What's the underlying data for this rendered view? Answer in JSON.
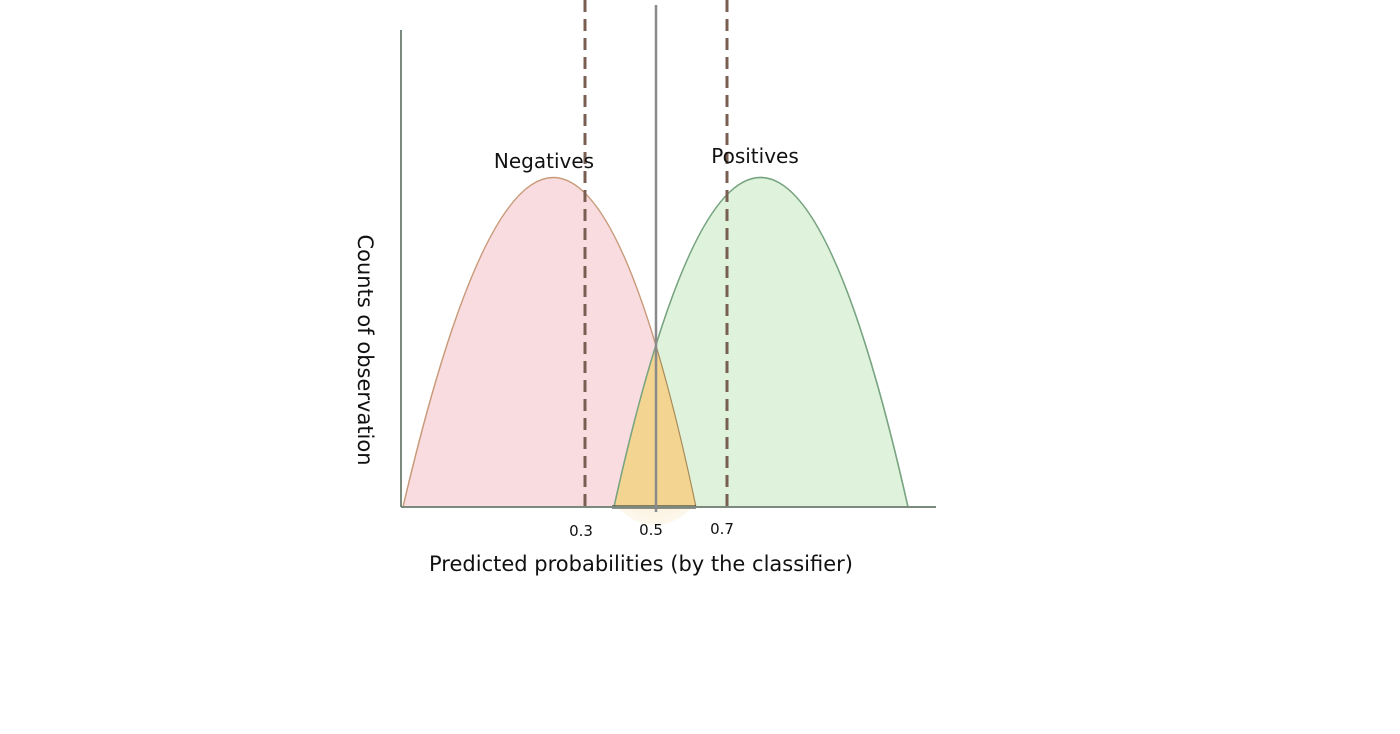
{
  "diagram": {
    "groups": {
      "negatives": {
        "label": "Negatives",
        "fill": "#f9dcdf",
        "stroke": "#c89a7a"
      },
      "positives": {
        "label": "Positives",
        "fill": "#dff3dc",
        "stroke": "#7aa582"
      }
    },
    "overlap_fill": "#f3d591",
    "axes": {
      "x_label": "Predicted probabilities (by the classifier)",
      "y_label": "Counts of observation",
      "axis_color": "#7a8a7c"
    },
    "thresholds": [
      {
        "label": "0.3",
        "style": "dashed",
        "color": "#7a5e52"
      },
      {
        "label": "0.5",
        "style": "solid",
        "color": "#8a8a8a"
      },
      {
        "label": "0.7",
        "style": "dashed",
        "color": "#7a5e52"
      }
    ]
  }
}
